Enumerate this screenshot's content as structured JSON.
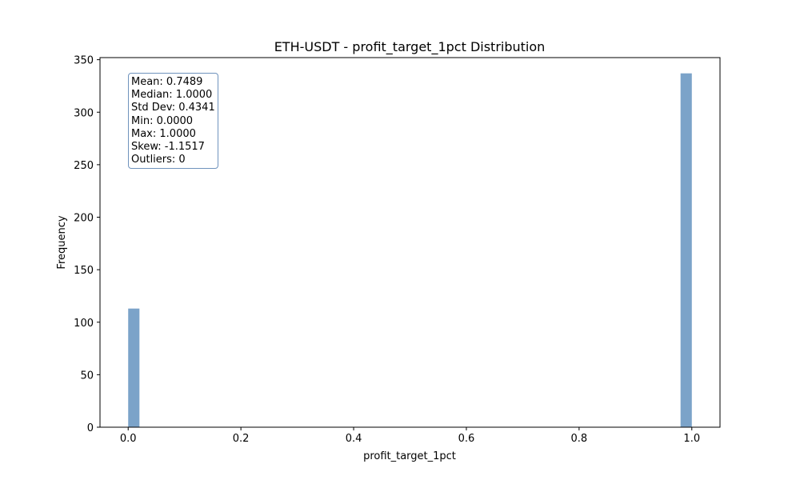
{
  "chart_data": {
    "type": "bar",
    "title": "ETH-USDT - profit_target_1pct Distribution",
    "xlabel": "profit_target_1pct",
    "ylabel": "Frequency",
    "bins": [
      {
        "x0": 0.0,
        "x1": 0.02,
        "count": 113
      },
      {
        "x0": 0.98,
        "x1": 1.0,
        "count": 337
      }
    ],
    "xlim": [
      -0.05,
      1.05
    ],
    "ylim": [
      0,
      352
    ],
    "xticks": [
      0.0,
      0.2,
      0.4,
      0.6,
      0.8,
      1.0
    ],
    "xtick_labels": [
      "0.0",
      "0.2",
      "0.4",
      "0.6",
      "0.8",
      "1.0"
    ],
    "yticks": [
      0,
      50,
      100,
      150,
      200,
      250,
      300,
      350
    ],
    "ytick_labels": [
      "0",
      "50",
      "100",
      "150",
      "200",
      "250",
      "300",
      "350"
    ],
    "bar_color": "#7ba3c9",
    "grid": false,
    "stats": {
      "mean": "Mean: 0.7489",
      "median": "Median: 1.0000",
      "std": "Std Dev: 0.4341",
      "min": "Min: 0.0000",
      "max": "Max: 1.0000",
      "skew": "Skew: -1.1517",
      "outliers": "Outliers: 0"
    }
  }
}
